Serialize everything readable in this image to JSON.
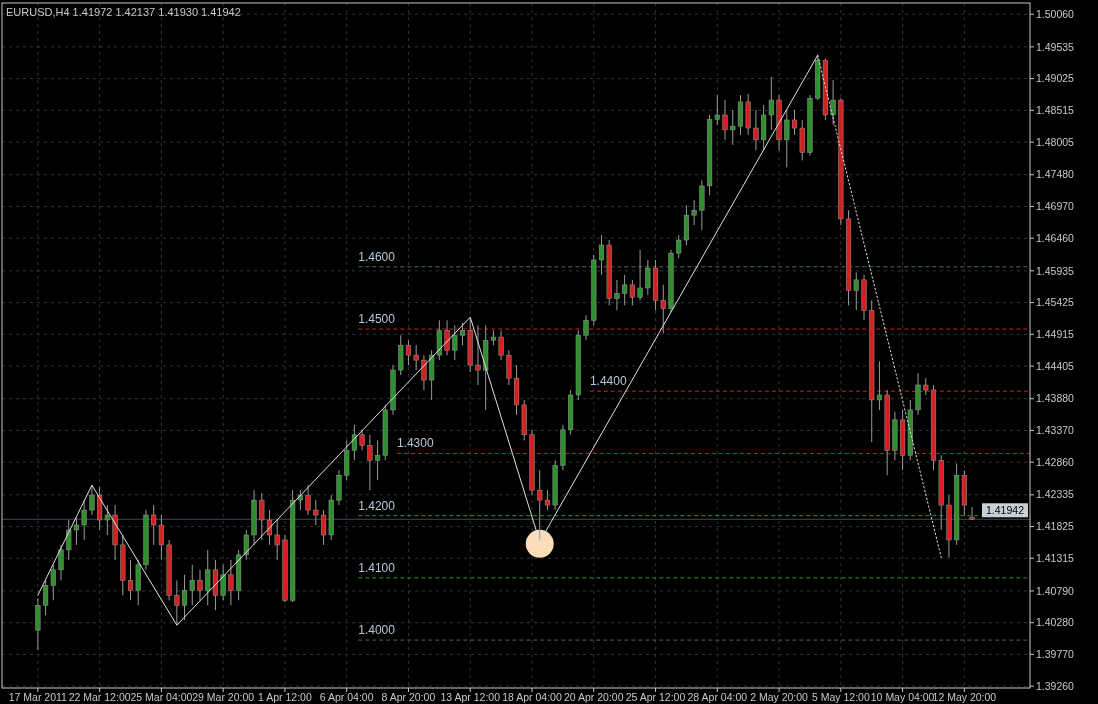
{
  "chart_data": {
    "type": "candlestick",
    "title": "EURUSD,H4  1.41972 1.42137 1.41930 1.41942",
    "categories": [
      "17 Mar 2011",
      null,
      null,
      null,
      null,
      null,
      null,
      null,
      "22 Mar 12:00",
      null,
      null,
      null,
      null,
      null,
      null,
      null,
      "25 Mar 04:00",
      null,
      null,
      null,
      null,
      null,
      null,
      null,
      "29 Mar 20:00",
      null,
      null,
      null,
      null,
      null,
      null,
      null,
      "1 Apr 12:00",
      null,
      null,
      null,
      null,
      null,
      null,
      null,
      "6 Apr 04:00",
      null,
      null,
      null,
      null,
      null,
      null,
      null,
      "8 Apr 20:00",
      null,
      null,
      null,
      null,
      null,
      null,
      null,
      "13 Apr 12:00",
      null,
      null,
      null,
      null,
      null,
      null,
      null,
      "18 Apr 04:00",
      null,
      null,
      null,
      null,
      null,
      null,
      null,
      "20 Apr 20:00",
      null,
      null,
      null,
      null,
      null,
      null,
      null,
      "25 Apr 12:00",
      null,
      null,
      null,
      null,
      null,
      null,
      null,
      "28 Apr 04:00",
      null,
      null,
      null,
      null,
      null,
      null,
      null,
      "2 May 20:00",
      null,
      null,
      null,
      null,
      null,
      null,
      null,
      "5 May 12:00",
      null,
      null,
      null,
      null,
      null,
      null,
      null,
      "10 May 04:00",
      null,
      null,
      null,
      null,
      null,
      null,
      null,
      "12 May 20:00",
      null,
      null,
      null,
      null,
      null,
      null,
      null,
      null
    ],
    "ohlc": [
      [
        1.4016,
        1.4067,
        1.3984,
        1.4056
      ],
      [
        1.4056,
        1.4096,
        1.404,
        1.4088
      ],
      [
        1.4088,
        1.4121,
        1.4064,
        1.4113
      ],
      [
        1.4113,
        1.4153,
        1.4096,
        1.4145
      ],
      [
        1.4145,
        1.4193,
        1.4129,
        1.4177
      ],
      [
        1.4177,
        1.4196,
        1.4153,
        1.4185
      ],
      [
        1.4185,
        1.4225,
        1.4161,
        1.4209
      ],
      [
        1.4209,
        1.4249,
        1.4201,
        1.4233
      ],
      [
        1.4233,
        1.4246,
        1.4177,
        1.4193
      ],
      [
        1.4193,
        1.4217,
        1.4169,
        1.4201
      ],
      [
        1.4201,
        1.4217,
        1.4129,
        1.4153
      ],
      [
        1.4153,
        1.4169,
        1.4072,
        1.4096
      ],
      [
        1.4096,
        1.4129,
        1.4064,
        1.408
      ],
      [
        1.408,
        1.4129,
        1.4056,
        1.4121
      ],
      [
        1.4121,
        1.4209,
        1.4113,
        1.4201
      ],
      [
        1.4201,
        1.4217,
        1.4153,
        1.4185
      ],
      [
        1.4185,
        1.4201,
        1.4129,
        1.4153
      ],
      [
        1.4153,
        1.4161,
        1.4064,
        1.4072
      ],
      [
        1.4072,
        1.4096,
        1.4024,
        1.4056
      ],
      [
        1.4056,
        1.4105,
        1.4032,
        1.408
      ],
      [
        1.408,
        1.4121,
        1.4056,
        1.4096
      ],
      [
        1.4096,
        1.4113,
        1.4064,
        1.408
      ],
      [
        1.408,
        1.4145,
        1.4056,
        1.4113
      ],
      [
        1.4113,
        1.4129,
        1.4048,
        1.4072
      ],
      [
        1.4072,
        1.4121,
        1.4064,
        1.4105
      ],
      [
        1.4105,
        1.4129,
        1.4056,
        1.408
      ],
      [
        1.408,
        1.4145,
        1.4064,
        1.4137
      ],
      [
        1.4137,
        1.4177,
        1.4129,
        1.4169
      ],
      [
        1.4169,
        1.4241,
        1.4153,
        1.4225
      ],
      [
        1.4225,
        1.4236,
        1.4161,
        1.4193
      ],
      [
        1.4193,
        1.4209,
        1.4153,
        1.4169
      ],
      [
        1.4169,
        1.4193,
        1.4129,
        1.4153
      ],
      [
        1.4161,
        1.4169,
        1.4061,
        1.4064
      ],
      [
        1.4064,
        1.4241,
        1.4061,
        1.4225
      ],
      [
        1.4225,
        1.4241,
        1.4209,
        1.4233
      ],
      [
        1.4233,
        1.4249,
        1.4201,
        1.4209
      ],
      [
        1.4209,
        1.4225,
        1.4185,
        1.4201
      ],
      [
        1.4201,
        1.4209,
        1.4153,
        1.4169
      ],
      [
        1.4169,
        1.4233,
        1.4161,
        1.4225
      ],
      [
        1.4225,
        1.4273,
        1.4217,
        1.4265
      ],
      [
        1.4265,
        1.4321,
        1.4257,
        1.4305
      ],
      [
        1.4305,
        1.4346,
        1.4289,
        1.433
      ],
      [
        1.433,
        1.4338,
        1.4305,
        1.4313
      ],
      [
        1.4313,
        1.433,
        1.4241,
        1.4289
      ],
      [
        1.4289,
        1.4321,
        1.4257,
        1.4297
      ],
      [
        1.4297,
        1.4378,
        1.4289,
        1.437
      ],
      [
        1.437,
        1.4442,
        1.4362,
        1.4434
      ],
      [
        1.4434,
        1.449,
        1.4426,
        1.4474
      ],
      [
        1.4474,
        1.4482,
        1.4442,
        1.4458
      ],
      [
        1.4458,
        1.4474,
        1.4434,
        1.445
      ],
      [
        1.445,
        1.4458,
        1.4402,
        1.4418
      ],
      [
        1.4418,
        1.4466,
        1.4386,
        1.4458
      ],
      [
        1.4458,
        1.4514,
        1.445,
        1.4498
      ],
      [
        1.4498,
        1.4514,
        1.4458,
        1.4466
      ],
      [
        1.4466,
        1.4506,
        1.445,
        1.449
      ],
      [
        1.449,
        1.451,
        1.4474,
        1.4498
      ],
      [
        1.4498,
        1.4519,
        1.4431,
        1.4442
      ],
      [
        1.4442,
        1.4506,
        1.441,
        1.4434
      ],
      [
        1.4434,
        1.4506,
        1.437,
        1.4482
      ],
      [
        1.4482,
        1.4498,
        1.4474,
        1.4487
      ],
      [
        1.4487,
        1.4498,
        1.445,
        1.4458
      ],
      [
        1.4458,
        1.4466,
        1.441,
        1.4421
      ],
      [
        1.4421,
        1.4442,
        1.4362,
        1.4378
      ],
      [
        1.4378,
        1.4386,
        1.4321,
        1.433
      ],
      [
        1.433,
        1.4338,
        1.4233,
        1.4241
      ],
      [
        1.4241,
        1.4273,
        1.4158,
        1.4225
      ],
      [
        1.4225,
        1.4241,
        1.4209,
        1.4217
      ],
      [
        1.4217,
        1.4289,
        1.4209,
        1.4281
      ],
      [
        1.4281,
        1.4346,
        1.4273,
        1.4338
      ],
      [
        1.4338,
        1.4402,
        1.433,
        1.4394
      ],
      [
        1.4394,
        1.4498,
        1.4386,
        1.449
      ],
      [
        1.449,
        1.4522,
        1.4482,
        1.4514
      ],
      [
        1.4514,
        1.4619,
        1.4506,
        1.4611
      ],
      [
        1.4611,
        1.4651,
        1.4587,
        1.4635
      ],
      [
        1.4635,
        1.4643,
        1.4538,
        1.4549
      ],
      [
        1.4549,
        1.4579,
        1.453,
        1.4557
      ],
      [
        1.4557,
        1.4587,
        1.4538,
        1.4571
      ],
      [
        1.4571,
        1.4579,
        1.4538,
        1.4551
      ],
      [
        1.4551,
        1.4627,
        1.4546,
        1.4566
      ],
      [
        1.4566,
        1.4611,
        1.4555,
        1.4598
      ],
      [
        1.4598,
        1.4611,
        1.453,
        1.4546
      ],
      [
        1.4546,
        1.4571,
        1.4493,
        1.4533
      ],
      [
        1.4533,
        1.4627,
        1.4527,
        1.4622
      ],
      [
        1.4622,
        1.4651,
        1.4614,
        1.4643
      ],
      [
        1.4643,
        1.4699,
        1.4635,
        1.4683
      ],
      [
        1.4683,
        1.4707,
        1.4667,
        1.4691
      ],
      [
        1.4691,
        1.4739,
        1.4659,
        1.473
      ],
      [
        1.473,
        1.4844,
        1.4715,
        1.4837
      ],
      [
        1.4837,
        1.4876,
        1.4828,
        1.4844
      ],
      [
        1.4844,
        1.4868,
        1.4804,
        1.482
      ],
      [
        1.482,
        1.4852,
        1.4796,
        1.4826
      ],
      [
        1.4826,
        1.4876,
        1.4812,
        1.4865
      ],
      [
        1.4865,
        1.4878,
        1.4812,
        1.4823
      ],
      [
        1.4823,
        1.4852,
        1.4787,
        1.4804
      ],
      [
        1.4804,
        1.486,
        1.4787,
        1.4844
      ],
      [
        1.4844,
        1.4905,
        1.482,
        1.4868
      ],
      [
        1.4868,
        1.4876,
        1.4787,
        1.4804
      ],
      [
        1.4804,
        1.4852,
        1.476,
        1.4836
      ],
      [
        1.4836,
        1.4852,
        1.4812,
        1.4823
      ],
      [
        1.4823,
        1.4836,
        1.4771,
        1.4784
      ],
      [
        1.4784,
        1.4876,
        1.4779,
        1.4871
      ],
      [
        1.4871,
        1.494,
        1.4868,
        1.4932
      ],
      [
        1.4932,
        1.4935,
        1.4836,
        1.4844
      ],
      [
        1.4844,
        1.49,
        1.4828,
        1.4868
      ],
      [
        1.4868,
        1.4871,
        1.4667,
        1.4677
      ],
      [
        1.4677,
        1.4691,
        1.4538,
        1.4562
      ],
      [
        1.4562,
        1.4591,
        1.453,
        1.4579
      ],
      [
        1.4579,
        1.4587,
        1.4514,
        1.453
      ],
      [
        1.453,
        1.4546,
        1.4318,
        1.4386
      ],
      [
        1.4386,
        1.4448,
        1.437,
        1.4394
      ],
      [
        1.4394,
        1.4402,
        1.4265,
        1.4305
      ],
      [
        1.4305,
        1.4367,
        1.4289,
        1.4354
      ],
      [
        1.4354,
        1.437,
        1.4273,
        1.4297
      ],
      [
        1.4297,
        1.4386,
        1.4289,
        1.437
      ],
      [
        1.437,
        1.4429,
        1.4362,
        1.441
      ],
      [
        1.441,
        1.4421,
        1.4394,
        1.4402
      ],
      [
        1.4402,
        1.441,
        1.4273,
        1.4289
      ],
      [
        1.4289,
        1.4297,
        1.4177,
        1.4217
      ],
      [
        1.4217,
        1.4233,
        1.4133,
        1.4161
      ],
      [
        1.4161,
        1.4284,
        1.4153,
        1.4265
      ],
      [
        1.4265,
        1.4273,
        1.4201,
        1.4217
      ],
      [
        1.41972,
        1.42137,
        1.4193,
        1.41942
      ],
      null,
      null,
      null,
      null,
      null,
      null,
      null
    ],
    "colors": [
      "#2f8f2f",
      "#2f8f2f",
      "#2f8f2f",
      "#2f8f2f",
      "#2f8f2f",
      "#2f8f2f",
      "#2f8f2f",
      "#2f8f2f",
      "#d42020",
      "#2f8f2f",
      "#d42020",
      "#d42020",
      "#d42020",
      "#2f8f2f",
      "#2f8f2f",
      "#d42020",
      "#d42020",
      "#d42020",
      "#d42020",
      "#2f8f2f",
      "#2f8f2f",
      "#d42020",
      "#2f8f2f",
      "#d42020",
      "#2f8f2f",
      "#d42020",
      "#2f8f2f",
      "#2f8f2f",
      "#2f8f2f",
      "#d42020",
      "#d42020",
      "#d42020",
      "#d42020",
      "#2f8f2f",
      "#2f8f2f",
      "#d42020",
      "#d42020",
      "#d42020",
      "#2f8f2f",
      "#2f8f2f",
      "#2f8f2f",
      "#2f8f2f",
      "#d42020",
      "#d42020",
      "#2f8f2f",
      "#2f8f2f",
      "#2f8f2f",
      "#2f8f2f",
      "#d42020",
      "#d42020",
      "#d42020",
      "#2f8f2f",
      "#2f8f2f",
      "#d42020",
      "#2f8f2f",
      "#2f8f2f",
      "#d42020",
      "#d42020",
      "#2f8f2f",
      "#2f8f2f",
      "#d42020",
      "#d42020",
      "#d42020",
      "#d42020",
      "#d42020",
      "#d42020",
      "#d42020",
      "#2f8f2f",
      "#2f8f2f",
      "#2f8f2f",
      "#2f8f2f",
      "#2f8f2f",
      "#2f8f2f",
      "#2f8f2f",
      "#d42020",
      "#2f8f2f",
      "#2f8f2f",
      "#d42020",
      "#2f8f2f",
      "#2f8f2f",
      "#d42020",
      "#d42020",
      "#2f8f2f",
      "#2f8f2f",
      "#2f8f2f",
      "#2f8f2f",
      "#2f8f2f",
      "#2f8f2f",
      "#2f8f2f",
      "#d42020",
      "#2f8f2f",
      "#2f8f2f",
      "#d42020",
      "#d42020",
      "#2f8f2f",
      "#2f8f2f",
      "#d42020",
      "#2f8f2f",
      "#d42020",
      "#d42020",
      "#2f8f2f",
      "#2f8f2f",
      "#d42020",
      "#2f8f2f",
      "#d42020",
      "#d42020",
      "#2f8f2f",
      "#d42020",
      "#d42020",
      "#2f8f2f",
      "#d42020",
      "#2f8f2f",
      "#d42020",
      "#2f8f2f",
      "#2f8f2f",
      "#d42020",
      "#d42020",
      "#d42020",
      "#d42020",
      "#2f8f2f",
      "#d42020",
      "#d42020",
      null,
      null,
      null,
      null,
      null,
      null,
      null
    ],
    "series": [
      {
        "type": "line",
        "color": "#e0e0e0",
        "line_style": "solid",
        "values": [
          1.4072,
          null,
          null,
          null,
          null,
          null,
          null,
          1.4249,
          null,
          null,
          null,
          null,
          null,
          null,
          null,
          null,
          null,
          null,
          1.4024,
          null,
          null,
          null,
          null,
          null,
          null,
          null,
          null,
          null,
          null,
          null,
          null,
          null,
          null,
          null,
          null,
          null,
          null,
          null,
          null,
          null,
          null,
          null,
          null,
          null,
          null,
          null,
          null,
          null,
          null,
          null,
          null,
          null,
          null,
          null,
          null,
          null,
          1.4519,
          null,
          null,
          null,
          null,
          null,
          null,
          null,
          null,
          1.4158,
          null,
          null,
          null,
          null,
          null,
          null,
          null,
          null,
          null,
          null,
          null,
          null,
          null,
          null,
          null,
          null,
          null,
          null,
          null,
          null,
          null,
          null,
          null,
          null,
          null,
          null,
          null,
          null,
          null,
          null,
          null,
          null,
          null,
          null,
          null,
          1.494,
          null,
          null,
          null,
          null,
          null,
          null,
          null,
          null,
          null,
          null,
          null,
          null,
          null,
          null,
          null,
          null,
          null,
          null,
          null,
          null,
          null,
          null,
          null,
          null,
          null,
          null,
          null
        ]
      },
      {
        "type": "line",
        "color": "#e0e0e0",
        "line_style": "dotted",
        "values": [
          null,
          null,
          null,
          null,
          null,
          null,
          null,
          null,
          null,
          null,
          null,
          null,
          null,
          null,
          null,
          null,
          null,
          null,
          null,
          null,
          null,
          null,
          null,
          null,
          null,
          null,
          null,
          null,
          null,
          null,
          null,
          null,
          null,
          null,
          null,
          null,
          null,
          null,
          null,
          null,
          null,
          null,
          null,
          null,
          null,
          null,
          null,
          null,
          null,
          null,
          null,
          null,
          null,
          null,
          null,
          null,
          null,
          null,
          null,
          null,
          null,
          null,
          null,
          null,
          null,
          null,
          null,
          null,
          null,
          null,
          null,
          null,
          null,
          null,
          null,
          null,
          null,
          null,
          null,
          null,
          null,
          null,
          null,
          null,
          null,
          null,
          null,
          null,
          null,
          null,
          null,
          null,
          null,
          null,
          null,
          null,
          null,
          null,
          null,
          null,
          null,
          1.494,
          null,
          null,
          null,
          null,
          null,
          null,
          null,
          null,
          null,
          null,
          null,
          null,
          null,
          null,
          null,
          1.4133,
          null,
          null,
          null,
          null,
          null,
          null,
          null,
          null,
          null,
          null,
          null
        ]
      }
    ],
    "ylim": [
      1.3923,
      1.5024
    ],
    "yticks": [
      {
        "value": 1.3926,
        "label": "1.39260"
      },
      {
        "value": 1.3977,
        "label": "1.39770"
      },
      {
        "value": 1.4028,
        "label": "1.40280"
      },
      {
        "value": 1.4079,
        "label": "1.40790"
      },
      {
        "value": 1.41315,
        "label": "1.41315"
      },
      {
        "value": 1.41825,
        "label": "1.41825"
      },
      {
        "value": 1.42335,
        "label": "1.42335"
      },
      {
        "value": 1.4286,
        "label": "1.42860"
      },
      {
        "value": 1.4337,
        "label": "1.43370"
      },
      {
        "value": 1.4388,
        "label": "1.43880"
      },
      {
        "value": 1.44405,
        "label": "1.44405"
      },
      {
        "value": 1.44915,
        "label": "1.44915"
      },
      {
        "value": 1.45425,
        "label": "1.45425"
      },
      {
        "value": 1.45935,
        "label": "1.45935"
      },
      {
        "value": 1.4646,
        "label": "1.46460"
      },
      {
        "value": 1.4697,
        "label": "1.46970"
      },
      {
        "value": 1.4748,
        "label": "1.47480"
      },
      {
        "value": 1.48005,
        "label": "1.48005"
      },
      {
        "value": 1.48515,
        "label": "1.48515"
      },
      {
        "value": 1.49025,
        "label": "1.49025"
      },
      {
        "value": 1.49535,
        "label": "1.49535"
      },
      {
        "value": 1.5006,
        "label": "1.50060"
      }
    ],
    "ref_lines": [
      {
        "axis": "y",
        "value": 1.46,
        "label": "1.4600",
        "color": "#4f6a4f",
        "line_style": "dashed"
      },
      {
        "axis": "y",
        "value": 1.45,
        "label": "1.4500",
        "color": "#c82020",
        "line_style": "dashed"
      },
      {
        "axis": "y",
        "value": 1.44,
        "label": "1.4400",
        "color": "#c82020",
        "line_style": "dashed"
      },
      {
        "axis": "y",
        "value": 1.43,
        "label": "1.4300",
        "color": "#c82020",
        "line_style": "dashed"
      },
      {
        "axis": "y",
        "value": 1.42,
        "label": "1.4200",
        "color": "#1e9e1e",
        "line_style": "dashed"
      },
      {
        "axis": "y",
        "value": 1.41,
        "label": "1.4100",
        "color": "#1e9e1e",
        "line_style": "dashed"
      },
      {
        "axis": "y",
        "value": 1.4,
        "label": "1.4000",
        "color": "#4f6a4f",
        "line_style": "dashed"
      },
      {
        "axis": "y",
        "value": 1.41942,
        "label": "1.41942",
        "color": "#3c4a5c",
        "line_style": "solid"
      }
    ],
    "grid": true
  }
}
